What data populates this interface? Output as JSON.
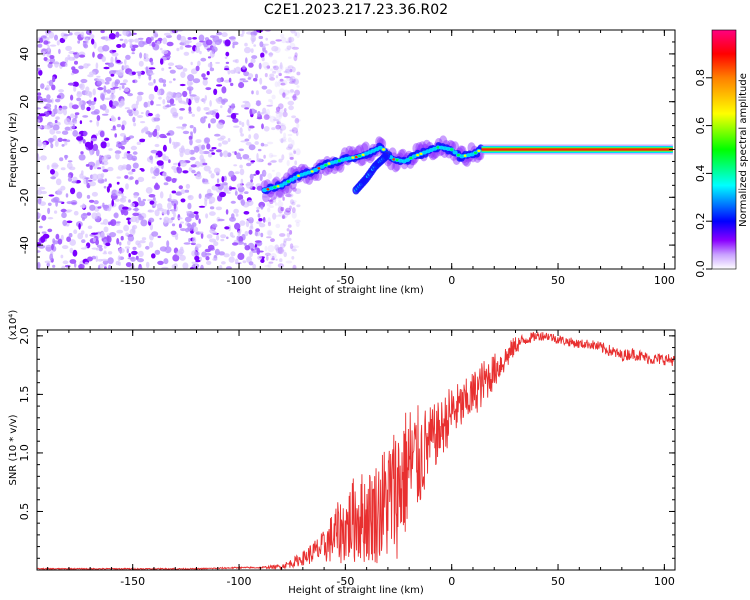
{
  "figure": {
    "title": "C2E1.2023.217.23.36.R02"
  },
  "chart_data": [
    {
      "type": "heatmap",
      "xlabel": "Height of straight line (km)",
      "ylabel": "Frequency (Hz)",
      "xlim": [
        -195,
        105
      ],
      "ylim": [
        -50,
        50
      ],
      "x_ticks": [
        -150,
        -100,
        -50,
        0,
        50,
        100
      ],
      "y_ticks": [
        -40,
        -20,
        0,
        20,
        40
      ],
      "colorbar": {
        "label": "Normalized spectral amplitude",
        "range": [
          0.0,
          1.0
        ],
        "ticks": [
          "0.0",
          "0.2",
          "0.4",
          "0.6",
          "0.8"
        ],
        "colors": [
          "#ffffff",
          "#8a00ff",
          "#0000ff",
          "#00ffff",
          "#00ff00",
          "#ffff00",
          "#ff0000",
          "#ff0080"
        ]
      },
      "noise_region": {
        "x_range": [
          -195,
          -82
        ],
        "y_range": [
          -50,
          50
        ]
      },
      "ridge": [
        {
          "x": -88,
          "y": -17
        },
        {
          "x": -80,
          "y": -15
        },
        {
          "x": -72,
          "y": -11
        },
        {
          "x": -65,
          "y": -9
        },
        {
          "x": -58,
          "y": -6
        },
        {
          "x": -50,
          "y": -4
        },
        {
          "x": -44,
          "y": -3
        },
        {
          "x": -38,
          "y": -1
        },
        {
          "x": -33,
          "y": 1
        },
        {
          "x": -28,
          "y": -4
        },
        {
          "x": -22,
          "y": -5
        },
        {
          "x": -18,
          "y": -3
        },
        {
          "x": -12,
          "y": -1
        },
        {
          "x": -6,
          "y": 1
        },
        {
          "x": 0,
          "y": 0
        },
        {
          "x": 4,
          "y": -3
        },
        {
          "x": 10,
          "y": -2
        },
        {
          "x": 14,
          "y": 0
        },
        {
          "x": 104,
          "y": 0
        }
      ],
      "branch": [
        {
          "x": -45,
          "y": -17
        },
        {
          "x": -40,
          "y": -12
        },
        {
          "x": -36,
          "y": -7
        },
        {
          "x": -30,
          "y": -2
        }
      ],
      "steady_line": {
        "x_range": [
          14,
          104
        ],
        "y": 0
      }
    },
    {
      "type": "line",
      "xlabel": "Height of straight line (km)",
      "ylabel": "SNR (10 * v/v)",
      "multiplier": "(x10⁴)",
      "xlim": [
        -195,
        105
      ],
      "ylim": [
        0,
        2.05
      ],
      "x_ticks": [
        -150,
        -100,
        -50,
        0,
        50,
        100
      ],
      "y_ticks": [
        0.5,
        1.0,
        1.5,
        2.0
      ],
      "y_tick_labels": [
        "0.5",
        "1.0",
        "1.5",
        "2.0"
      ],
      "series": [
        {
          "color": "#e83030",
          "x": [
            -195,
            -180,
            -160,
            -140,
            -120,
            -100,
            -90,
            -80,
            -75,
            -70,
            -65,
            -60,
            -55,
            -50,
            -45,
            -40,
            -35,
            -30,
            -25,
            -20,
            -15,
            -10,
            -5,
            0,
            5,
            10,
            15,
            20,
            25,
            30,
            35,
            40,
            45,
            50,
            55,
            60,
            65,
            70,
            75,
            80,
            85,
            90,
            95,
            100,
            105
          ],
          "y": [
            0.01,
            0.01,
            0.01,
            0.01,
            0.01,
            0.02,
            0.02,
            0.03,
            0.06,
            0.1,
            0.15,
            0.2,
            0.3,
            0.35,
            0.45,
            0.45,
            0.5,
            0.6,
            0.7,
            0.9,
            0.95,
            1.1,
            1.2,
            1.35,
            1.4,
            1.5,
            1.6,
            1.7,
            1.8,
            1.92,
            1.97,
            2.0,
            2.0,
            1.97,
            1.95,
            1.93,
            1.93,
            1.9,
            1.87,
            1.83,
            1.85,
            1.82,
            1.8,
            1.8,
            1.79
          ],
          "noise_amplitude": [
            0.005,
            0.005,
            0.005,
            0.005,
            0.005,
            0.006,
            0.006,
            0.02,
            0.04,
            0.06,
            0.1,
            0.14,
            0.25,
            0.3,
            0.4,
            0.4,
            0.45,
            0.55,
            0.6,
            0.55,
            0.45,
            0.3,
            0.25,
            0.25,
            0.2,
            0.2,
            0.2,
            0.15,
            0.12,
            0.08,
            0.05,
            0.04,
            0.04,
            0.04,
            0.04,
            0.04,
            0.04,
            0.05,
            0.05,
            0.05,
            0.05,
            0.05,
            0.05,
            0.05,
            0.05
          ]
        }
      ]
    }
  ]
}
